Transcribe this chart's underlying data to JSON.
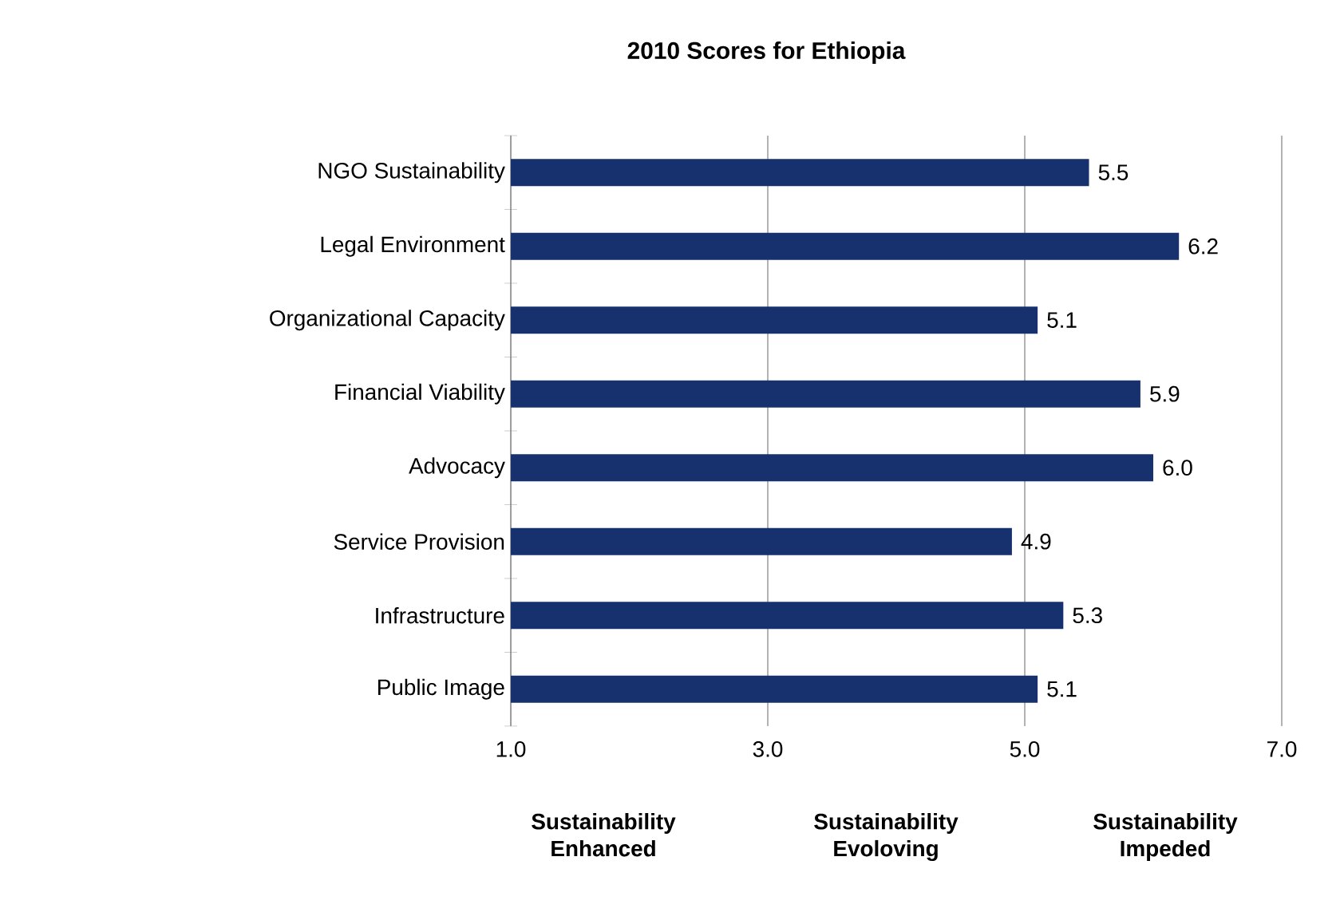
{
  "chart_data": {
    "type": "bar",
    "orientation": "horizontal",
    "title": "2010 Scores for Ethiopia",
    "categories": [
      "NGO Sustainability",
      "Legal Environment",
      "Organizational Capacity",
      "Financial Viability",
      "Advocacy",
      "Service Provision",
      "Infrastructure",
      "Public Image"
    ],
    "values": [
      5.5,
      6.2,
      5.1,
      5.9,
      6.0,
      4.9,
      5.3,
      5.1
    ],
    "value_labels": [
      "5.5",
      "6.2",
      "5.1",
      "5.9",
      "6.0",
      "4.9",
      "5.3",
      "5.1"
    ],
    "color": "#17316e",
    "xlim": [
      1,
      7
    ],
    "xticks": [
      {
        "value": 1,
        "label": "1.0"
      },
      {
        "value": 3,
        "label": "3.0"
      },
      {
        "value": 5,
        "label": "5.0"
      },
      {
        "value": 7,
        "label": "7.0"
      }
    ],
    "grid": "x",
    "annotations": [
      "Sustainability Enhanced",
      "Sustainability Evoloving",
      "Sustainability Impeded"
    ]
  }
}
